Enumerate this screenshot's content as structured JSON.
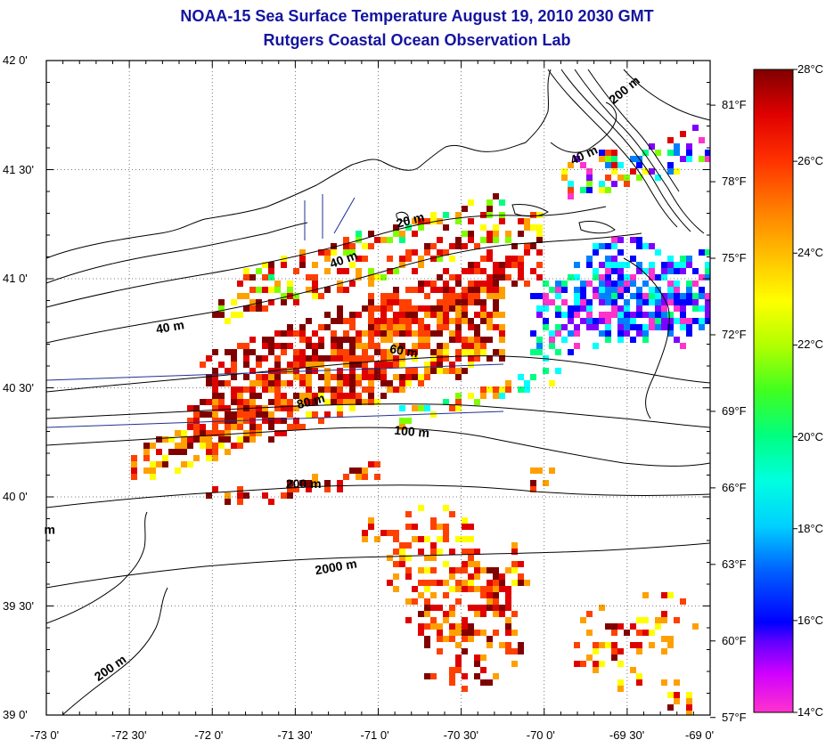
{
  "header": {
    "title": "NOAA-15 Sea Surface Temperature August 19, 2010 2030 GMT",
    "subtitle": "Rutgers Coastal Ocean Observation Lab"
  },
  "map": {
    "lat_range": [
      39.0,
      42.0
    ],
    "lon_range": [
      -73.0,
      -69.0
    ],
    "lat_ticks": [
      {
        "value": 42.0,
        "label": "42 0'"
      },
      {
        "value": 41.5,
        "label": "41 30'"
      },
      {
        "value": 41.0,
        "label": "41 0'"
      },
      {
        "value": 40.5,
        "label": "40 30'"
      },
      {
        "value": 40.0,
        "label": "40 0'"
      },
      {
        "value": 39.5,
        "label": "39 30'"
      },
      {
        "value": 39.0,
        "label": "39 0'"
      }
    ],
    "lon_ticks": [
      {
        "value": -73.0,
        "label": "-73 0'"
      },
      {
        "value": -72.5,
        "label": "-72 30'"
      },
      {
        "value": -72.0,
        "label": "-72 0'"
      },
      {
        "value": -71.5,
        "label": "-71 30'"
      },
      {
        "value": -71.0,
        "label": "-71 0'"
      },
      {
        "value": -70.5,
        "label": "-70 30'"
      },
      {
        "value": -70.0,
        "label": "-70 0'"
      },
      {
        "value": -69.5,
        "label": "-69 30'"
      },
      {
        "value": -69.0,
        "label": "-69 0'"
      }
    ],
    "grid": "dotted",
    "depth_labels": [
      {
        "text": "200 m",
        "lon": -69.5,
        "lat": 41.85,
        "rot": -40
      },
      {
        "text": "40 m",
        "lon": -69.75,
        "lat": 41.55,
        "rot": -25
      },
      {
        "text": "20 m",
        "lon": -70.8,
        "lat": 41.25,
        "rot": -15
      },
      {
        "text": "40 m",
        "lon": -71.2,
        "lat": 41.07,
        "rot": -20
      },
      {
        "text": "40 m",
        "lon": -72.25,
        "lat": 40.76,
        "rot": -10
      },
      {
        "text": "60 m",
        "lon": -70.85,
        "lat": 40.65,
        "rot": 10
      },
      {
        "text": "80 m",
        "lon": -71.4,
        "lat": 40.42,
        "rot": -15
      },
      {
        "text": "100 m",
        "lon": -70.8,
        "lat": 40.28,
        "rot": 5
      },
      {
        "text": "200 m",
        "lon": -71.45,
        "lat": 40.04,
        "rot": 0
      },
      {
        "text": "2000 m",
        "lon": -71.25,
        "lat": 39.66,
        "rot": -10
      },
      {
        "text": "200 m",
        "lon": -72.6,
        "lat": 39.2,
        "rot": -35
      },
      {
        "text": "m",
        "lon": -72.98,
        "lat": 39.83,
        "rot": 0
      }
    ]
  },
  "colorbar": {
    "celsius_ticks": [
      {
        "value": 28,
        "label": "28°C"
      },
      {
        "value": 26,
        "label": "26°C"
      },
      {
        "value": 24,
        "label": "24°C"
      },
      {
        "value": 22,
        "label": "22°C"
      },
      {
        "value": 20,
        "label": "20°C"
      },
      {
        "value": 18,
        "label": "18°C"
      },
      {
        "value": 16,
        "label": "16°C"
      },
      {
        "value": 14,
        "label": "14°C"
      }
    ],
    "fahrenheit_ticks": [
      {
        "value": 81,
        "label": "81°F"
      },
      {
        "value": 78,
        "label": "78°F"
      },
      {
        "value": 75,
        "label": "75°F"
      },
      {
        "value": 72,
        "label": "72°F"
      },
      {
        "value": 69,
        "label": "69°F"
      },
      {
        "value": 66,
        "label": "66°F"
      },
      {
        "value": 63,
        "label": "63°F"
      },
      {
        "value": 60,
        "label": "60°F"
      },
      {
        "value": 57,
        "label": "57°F"
      }
    ],
    "range_c": [
      14,
      28
    ],
    "colors": [
      "#ff33cc",
      "#8000ff",
      "#0000ff",
      "#0080ff",
      "#00ffff",
      "#00ff80",
      "#80ff00",
      "#ffff00",
      "#ffa000",
      "#ff4000",
      "#e00000",
      "#800000"
    ]
  }
}
